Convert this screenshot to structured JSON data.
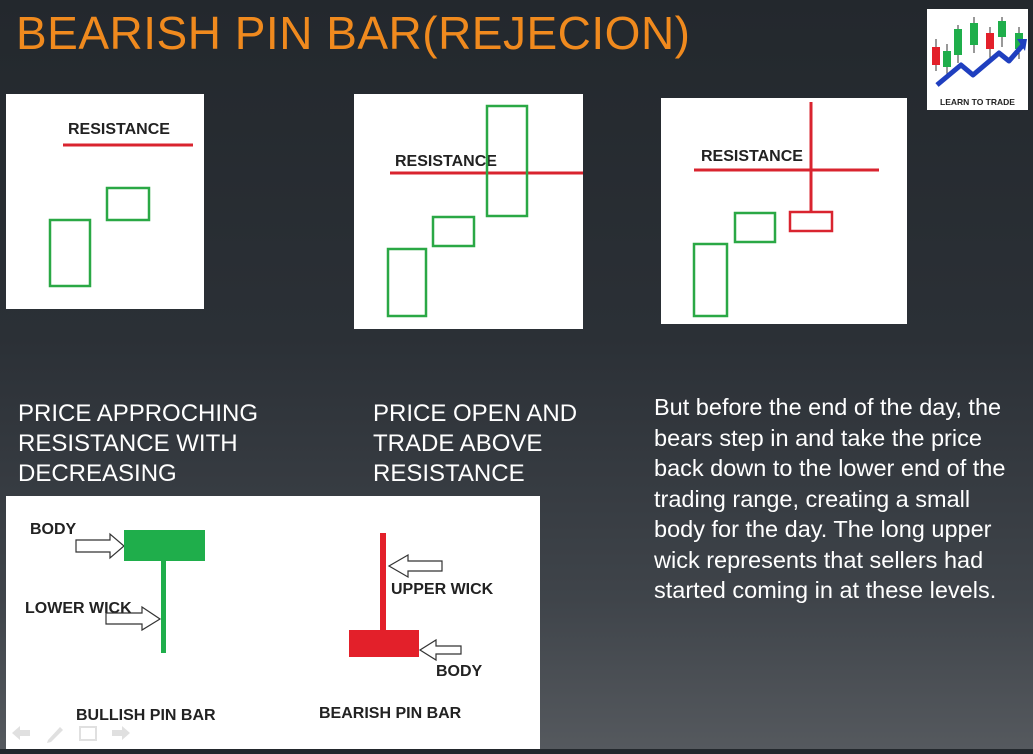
{
  "slide": {
    "title": "BEARISH PIN BAR(REJECION)",
    "logo_text": "LEARN TO TRADE"
  },
  "panels": [
    {
      "label": "RESISTANCE",
      "caption_lines": [
        "PRICE APPROCHING",
        "RESISTANCE WITH",
        "DECREASING"
      ]
    },
    {
      "label": "RESISTANCE",
      "caption_lines": [
        "PRICE OPEN AND",
        "TRADE ABOVE",
        "RESISTANCE"
      ]
    },
    {
      "label": "RESISTANCE"
    }
  ],
  "description": "But before the end of the day, the bears step in and take the price back down to the lower end of the trading range, creating a small body for the day. The long upper wick represents that sellers had started coming in at these levels.",
  "diagram": {
    "bullish": {
      "body_label": "BODY",
      "wick_label": "LOWER WICK",
      "name": "BULLISH PIN BAR"
    },
    "bearish": {
      "body_label": "BODY",
      "wick_label": "UPPER WICK",
      "name": "BEARISH PIN BAR"
    }
  },
  "colors": {
    "title": "#f08a1e",
    "bull_candle": "#1fae4b",
    "bear_candle": "#e3202a",
    "resistance_line": "#d9242f",
    "outline_candle": "#2aa845"
  },
  "icons": [
    "back-arrow-icon",
    "pen-icon",
    "menu-icon",
    "forward-arrow-icon"
  ]
}
